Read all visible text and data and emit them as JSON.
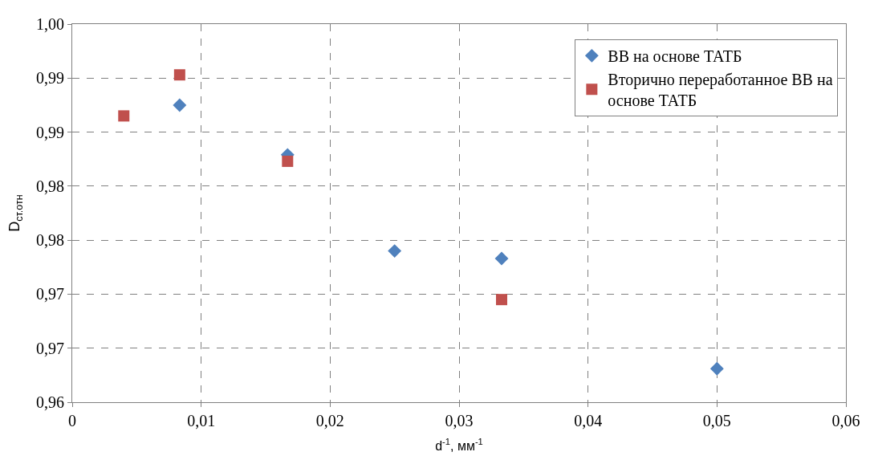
{
  "chart_data": {
    "type": "scatter",
    "xlabel": "d$^{-1}$, мм$^{-1}$",
    "ylabel": "D$_{ст.отн}$",
    "series": [
      {
        "name": "ВВ на основе ТАТБ",
        "color": "#4f81bd",
        "marker": "diamond",
        "x": [
          0.00833,
          0.0167,
          0.025,
          0.0333,
          0.05
        ],
        "values": [
          0.9915,
          0.9869,
          0.978,
          0.9773,
          0.9671
        ]
      },
      {
        "name": "Вторично переработанное ВВ на основе ТАТБ",
        "color": "#c0504d",
        "marker": "square",
        "x": [
          0.004,
          0.00833,
          0.0167,
          0.0333
        ],
        "values": [
          0.9905,
          0.9943,
          0.9863,
          0.9735
        ]
      }
    ],
    "xlim": [
      0,
      0.06
    ],
    "xticks": [
      {
        "value": 0,
        "label": "0"
      },
      {
        "value": 0.01,
        "label": "0,01"
      },
      {
        "value": 0.02,
        "label": "0,02"
      },
      {
        "value": 0.03,
        "label": "0,03"
      },
      {
        "value": 0.04,
        "label": "0,04"
      },
      {
        "value": 0.05,
        "label": "0,05"
      },
      {
        "value": 0.06,
        "label": "0,06"
      }
    ],
    "ylim": [
      0.964,
      0.999
    ],
    "yticks": [
      {
        "value": 0.964,
        "label": "0,96"
      },
      {
        "value": 0.969,
        "label": "0,97"
      },
      {
        "value": 0.974,
        "label": "0,97"
      },
      {
        "value": 0.979,
        "label": "0,98"
      },
      {
        "value": 0.984,
        "label": "0,98"
      },
      {
        "value": 0.989,
        "label": "0,99"
      },
      {
        "value": 0.994,
        "label": "0,99"
      },
      {
        "value": 0.999,
        "label": "1,00"
      }
    ],
    "grid": true,
    "line_style": "dashed",
    "legend": "top right"
  }
}
